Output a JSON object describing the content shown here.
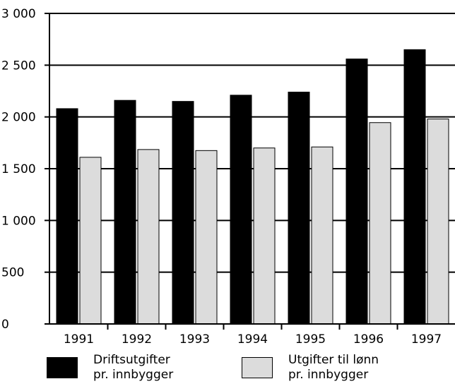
{
  "chart_data": {
    "type": "bar",
    "title": "",
    "xlabel": "",
    "ylabel": "",
    "categories": [
      "1991",
      "1992",
      "1993",
      "1994",
      "1995",
      "1996",
      "1997"
    ],
    "series": [
      {
        "name": "Driftsutgifter pr. innbygger",
        "name_lines": [
          "Driftsutgifter",
          "pr. innbygger"
        ],
        "color": "#000000",
        "values": [
          2080,
          2160,
          2150,
          2210,
          2240,
          2560,
          2650
        ]
      },
      {
        "name": "Utgifter til lønn pr. innbygger",
        "name_lines": [
          "Utgifter til lønn",
          "pr. innbygger"
        ],
        "color": "#dcdcdc",
        "values": [
          1610,
          1685,
          1675,
          1700,
          1710,
          1945,
          1980
        ]
      }
    ],
    "ylim": [
      0,
      3000
    ],
    "yticks": [
      0,
      500,
      1000,
      1500,
      2000,
      2500,
      3000
    ],
    "ytick_labels": [
      "0",
      "500",
      "1 000",
      "1 500",
      "2 000",
      "2 500",
      "3 000"
    ],
    "grid": true,
    "legend_position": "bottom"
  }
}
